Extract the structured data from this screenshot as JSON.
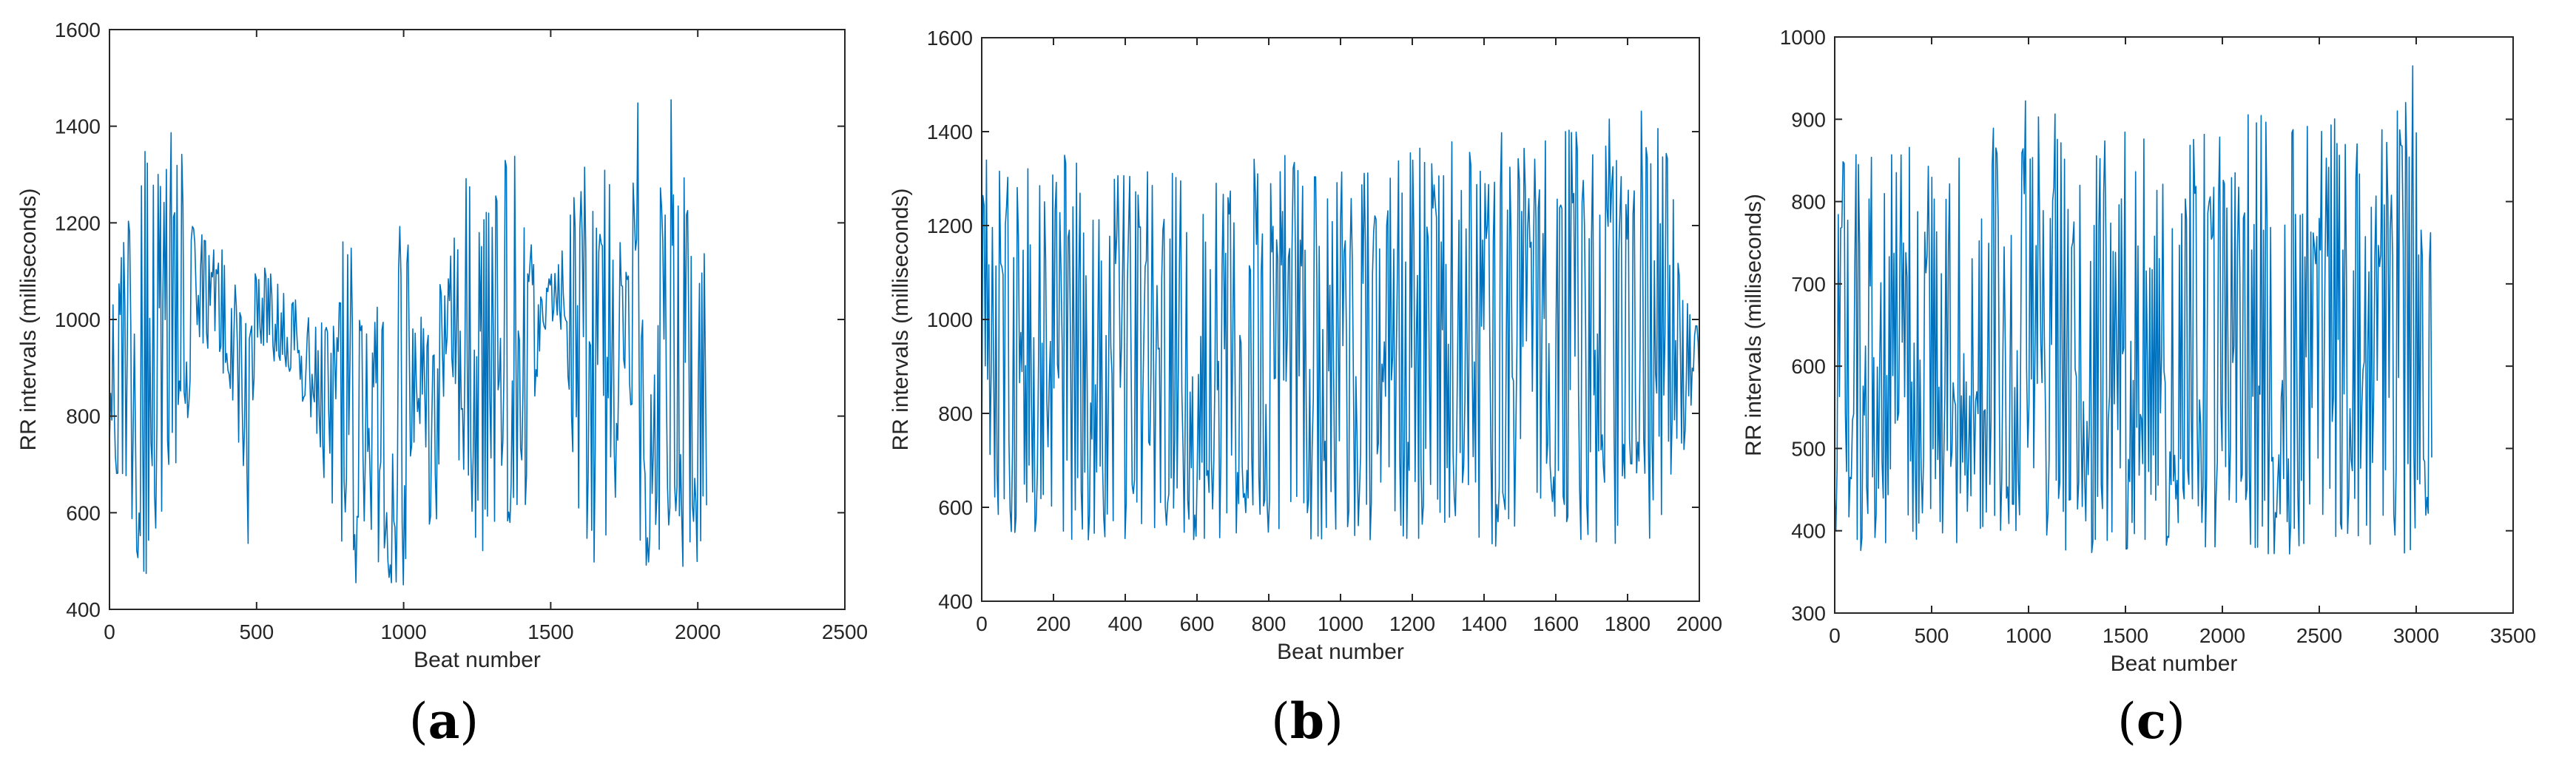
{
  "colors": {
    "trace": "#0072BD",
    "axis": "#262626",
    "background": "#ffffff"
  },
  "chart_data": [
    {
      "type": "line",
      "caption": "a",
      "xlabel": "Beat number",
      "ylabel": "RR intervals (milliseconds)",
      "xlim": [
        0,
        2500
      ],
      "ylim": [
        400,
        1600
      ],
      "xticks": [
        "0",
        "500",
        "1000",
        "1500",
        "2000",
        "2500"
      ],
      "yticks": [
        "400",
        "600",
        "800",
        "1000",
        "1200",
        "1400",
        "1600"
      ],
      "grid": false,
      "series": [
        {
          "x": [
            0,
            100,
            200,
            300,
            400,
            480,
            500,
            600,
            700,
            770,
            800,
            900,
            1000,
            1050,
            1100,
            1150,
            1200,
            1300,
            1400,
            1460,
            1500,
            1550,
            1600,
            1700,
            1760,
            1800,
            1900,
            2000,
            2030
          ],
          "y": [
            950,
            1010,
            1000,
            1060,
            1010,
            930,
            1050,
            960,
            880,
            820,
            720,
            720,
            720,
            900,
            760,
            1050,
            880,
            920,
            920,
            980,
            1050,
            1070,
            1020,
            860,
            1010,
            900,
            940,
            900,
            880
          ],
          "min": [
            700,
            470,
            480,
            930,
            880,
            470,
            950,
            880,
            780,
            500,
            450,
            450,
            450,
            820,
            470,
            960,
            520,
            500,
            520,
            910,
            1000,
            960,
            490,
            480,
            930,
            480,
            470,
            480,
            520
          ],
          "max": [
            1080,
            1350,
            1480,
            1180,
            1150,
            1000,
            1130,
            1060,
            1000,
            1000,
            1220,
            1000,
            1260,
            1020,
            1100,
            1080,
            1380,
            1360,
            1340,
            1050,
            1100,
            1180,
            1320,
            1320,
            1090,
            1500,
            1480,
            1330,
            1220
          ]
        }
      ]
    },
    {
      "type": "line",
      "caption": "b",
      "xlabel": "Beat number",
      "ylabel": "RR intervals (milliseconds)",
      "xlim": [
        0,
        2000
      ],
      "ylim": [
        400,
        1600
      ],
      "xticks": [
        "0",
        "200",
        "400",
        "600",
        "800",
        "1000",
        "1200",
        "1400",
        "1600",
        "1800",
        "2000"
      ],
      "yticks": [
        "400",
        "600",
        "800",
        "1000",
        "1200",
        "1400",
        "1600"
      ],
      "grid": false,
      "series": [
        {
          "x": [
            0,
            100,
            200,
            300,
            400,
            500,
            600,
            700,
            800,
            900,
            1000,
            1100,
            1200,
            1300,
            1400,
            1500,
            1600,
            1700,
            1800,
            1900,
            2000
          ],
          "y": [
            900,
            900,
            900,
            900,
            900,
            900,
            900,
            900,
            900,
            900,
            900,
            900,
            900,
            900,
            920,
            920,
            920,
            920,
            900,
            900,
            900
          ],
          "min": [
            530,
            530,
            530,
            530,
            530,
            540,
            530,
            530,
            530,
            530,
            530,
            530,
            530,
            520,
            510,
            520,
            530,
            520,
            520,
            540,
            850
          ],
          "max": [
            1340,
            1340,
            1390,
            1320,
            1310,
            1330,
            1360,
            1340,
            1350,
            1350,
            1320,
            1310,
            1370,
            1400,
            1450,
            1420,
            1420,
            1450,
            1460,
            1420,
            1000
          ]
        }
      ]
    },
    {
      "type": "line",
      "caption": "c",
      "xlabel": "Beat number",
      "ylabel": "RR intervals (milliseconds)",
      "xlim": [
        0,
        3500
      ],
      "ylim": [
        300,
        1000
      ],
      "xticks": [
        "0",
        "500",
        "1000",
        "1500",
        "2000",
        "2500",
        "3000",
        "3500"
      ],
      "yticks": [
        "300",
        "400",
        "500",
        "600",
        "700",
        "800",
        "900",
        "1000"
      ],
      "grid": false,
      "series": [
        {
          "x": [
            0,
            250,
            500,
            750,
            1000,
            1250,
            1500,
            1750,
            2000,
            2250,
            2500,
            2750,
            3000,
            3080
          ],
          "y": [
            580,
            580,
            580,
            580,
            580,
            580,
            580,
            580,
            580,
            580,
            580,
            580,
            580,
            580
          ],
          "min": [
            360,
            380,
            380,
            390,
            390,
            370,
            360,
            380,
            380,
            370,
            370,
            380,
            370,
            400
          ],
          "max": [
            850,
            870,
            900,
            890,
            950,
            920,
            940,
            880,
            900,
            940,
            910,
            890,
            980,
            780
          ]
        }
      ]
    }
  ]
}
